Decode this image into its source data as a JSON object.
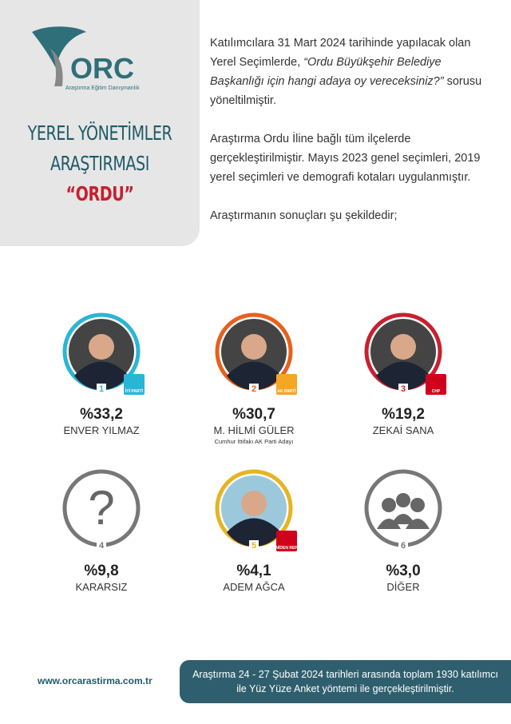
{
  "logo": {
    "name": "ORC",
    "tagline": "Araştırma Eğitim Danışmanlık"
  },
  "header": {
    "title_lines": [
      "YEREL YÖNETİMLER",
      "ARAŞTIRMASI",
      "“ORDU”"
    ]
  },
  "intro": {
    "paragraph_1": {
      "before": "Katılımcılara 31 Mart 2024 tarihinde yapılacak olan Yerel Seçimlerde, ",
      "question": "“Ordu Büyükşehir Belediye Başkanlığı için hangi adaya oy vereceksiniz?”",
      "after": " sorusu yöneltilmiştir."
    },
    "paragraph_2": "Araştırma Ordu İline bağlı tüm ilçelerde gerçekleştirilmiştir. Mayıs 2023 genel seçimleri, 2019 yerel seçimleri ve demografi kotaları uygulanmıştır.",
    "paragraph_3": "Araştırmanın sonuçları şu şekildedir;"
  },
  "candidates": [
    {
      "rank": "1",
      "percent": "%33,2",
      "name": "ENVER YILMAZ",
      "party": "İYİ PARTİ"
    },
    {
      "rank": "2",
      "percent": "%30,7",
      "name": "M. HİLMİ GÜLER",
      "note": "Cumhur İttifakı AK Parti Adayı",
      "party": "AK PARTİ"
    },
    {
      "rank": "3",
      "percent": "%19,2",
      "name": "ZEKAİ SANA",
      "party": "CHP"
    },
    {
      "rank": "4",
      "percent": "%9,8",
      "name": "KARARSIZ",
      "symbol": "?"
    },
    {
      "rank": "5",
      "percent": "%4,1",
      "name": "ADEM AĞCA",
      "party": "YENİDEN REFAH"
    },
    {
      "rank": "6",
      "percent": "%3,0",
      "name": "DİĞER"
    }
  ],
  "footer": {
    "website": "www.orcarastirma.com.tr",
    "note": "Araştırma 24 - 27 Şubat 2024 tarihleri arasında toplam 1930 katılımcı ile Yüz Yüze Anket yöntemi ile gerçekleştirilmiştir."
  }
}
